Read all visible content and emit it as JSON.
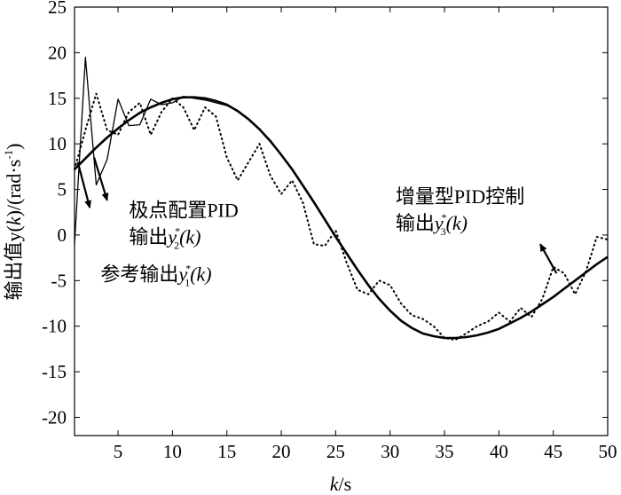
{
  "chart_data": {
    "type": "line",
    "title": "",
    "xlabel": {
      "var": "k",
      "unit": "/s"
    },
    "ylabel": {
      "prefix": "输出值y(",
      "var": "k",
      "suffix": ")/(rad·s",
      "sup": "-1",
      "end": ")"
    },
    "xlim": [
      1,
      50
    ],
    "ylim": [
      -22,
      25
    ],
    "xticks": [
      5,
      10,
      15,
      20,
      25,
      30,
      35,
      40,
      45,
      50
    ],
    "yticks": [
      -20,
      -15,
      -10,
      -5,
      0,
      5,
      10,
      15,
      20,
      25
    ],
    "grid": false,
    "legend": "none",
    "series": [
      {
        "style": "thick",
        "x": [
          1,
          2,
          3,
          4,
          5,
          6,
          7,
          8,
          9,
          10,
          11,
          12,
          13,
          14,
          15,
          16,
          17,
          18,
          19,
          20,
          21,
          22,
          23,
          24,
          25,
          26,
          27,
          28,
          29,
          30,
          31,
          32,
          33,
          34,
          35,
          36,
          37,
          38,
          39,
          40,
          41,
          42,
          43,
          44,
          45,
          46,
          47,
          48,
          49,
          50
        ],
        "y": [
          7.2,
          8.4,
          9.6,
          10.7,
          11.7,
          12.6,
          13.4,
          14.0,
          14.5,
          14.9,
          15.1,
          15.1,
          15.0,
          14.7,
          14.3,
          13.6,
          12.7,
          11.6,
          10.3,
          8.8,
          7.2,
          5.4,
          3.6,
          1.7,
          -0.2,
          -2.0,
          -3.8,
          -5.5,
          -7.0,
          -8.3,
          -9.4,
          -10.2,
          -10.8,
          -11.1,
          -11.3,
          -11.3,
          -11.2,
          -11.0,
          -10.7,
          -10.3,
          -9.7,
          -9.1,
          -8.4,
          -7.6,
          -6.8,
          -5.9,
          -5.0,
          -4.1,
          -3.2,
          -2.4
        ]
      },
      {
        "style": "thin",
        "x": [
          1,
          2,
          3,
          4,
          5,
          6,
          7,
          8,
          9,
          10,
          11,
          12,
          13,
          14,
          15,
          16,
          17,
          18,
          19,
          20,
          21,
          22,
          23,
          24,
          25,
          26,
          27,
          28,
          29,
          30,
          31,
          32,
          33,
          34,
          35,
          36,
          37,
          38,
          39,
          40,
          41,
          42,
          43,
          44,
          45,
          46,
          47,
          48,
          49,
          50
        ],
        "y": [
          -1.0,
          19.5,
          5.5,
          8.3,
          14.9,
          12.0,
          12.1,
          14.9,
          14.3,
          14.5,
          15.2,
          15.0,
          14.8,
          14.5,
          14.2,
          13.6,
          12.7,
          11.6,
          10.3,
          8.8,
          7.2,
          5.4,
          3.6,
          1.7,
          -0.2,
          -2.0,
          -3.8,
          -5.5,
          -7.0,
          -8.3,
          -9.4,
          -10.2,
          -10.8,
          -11.1,
          -11.3,
          -11.3,
          -11.2,
          -11.0,
          -10.7,
          -10.3,
          -9.7,
          -9.1,
          -8.4,
          -7.6,
          -6.8,
          -5.9,
          -5.0,
          -4.1,
          -3.2,
          -2.4
        ]
      },
      {
        "style": "dotted",
        "x": [
          1,
          2,
          3,
          4,
          5,
          6,
          7,
          8,
          9,
          10,
          11,
          12,
          13,
          14,
          15,
          16,
          17,
          18,
          19,
          20,
          21,
          22,
          23,
          24,
          25,
          26,
          27,
          28,
          29,
          30,
          31,
          32,
          33,
          34,
          35,
          36,
          37,
          38,
          39,
          40,
          41,
          42,
          43,
          44,
          45,
          46,
          47,
          48,
          49,
          50
        ],
        "y": [
          7.2,
          11.5,
          15.5,
          11.5,
          11.0,
          13.5,
          14.5,
          11.0,
          13.5,
          15.0,
          14.0,
          11.5,
          14.0,
          13.0,
          8.5,
          6.0,
          8.0,
          10.0,
          6.5,
          4.5,
          6.0,
          3.5,
          -1.0,
          -1.2,
          0.5,
          -3.0,
          -6.0,
          -6.5,
          -5.0,
          -5.5,
          -7.5,
          -8.8,
          -9.2,
          -10.0,
          -11.3,
          -11.5,
          -10.8,
          -10.0,
          -9.5,
          -8.5,
          -9.5,
          -8.0,
          -9.0,
          -7.0,
          -3.5,
          -4.2,
          -6.5,
          -4.0,
          -0.2,
          -0.5
        ]
      }
    ],
    "annotations": [
      {
        "lines": [
          {
            "text": "极点配置PID"
          },
          {
            "text": "输出",
            "var": "y",
            "sup": "*",
            "sub": "2",
            "arg": "(k)"
          }
        ],
        "x": 6,
        "y": 2.0,
        "arrow_to": [
          4.0,
          3.8
        ]
      },
      {
        "lines": [
          {
            "text": "参考输出",
            "var": "y",
            "sup": "*",
            "sub": "1",
            "arg": "(k)"
          }
        ],
        "x": 3.4,
        "y": -5.0,
        "arrow_to": [
          2.4,
          3.0
        ]
      },
      {
        "lines": [
          {
            "text": "增量型PID控制"
          },
          {
            "text": "输出",
            "var": "y",
            "sup": "*",
            "sub": "3",
            "arg": "(k)"
          }
        ],
        "x": 30.5,
        "y": 3.5,
        "arrow_to": [
          43.8,
          -1.0
        ]
      }
    ]
  }
}
